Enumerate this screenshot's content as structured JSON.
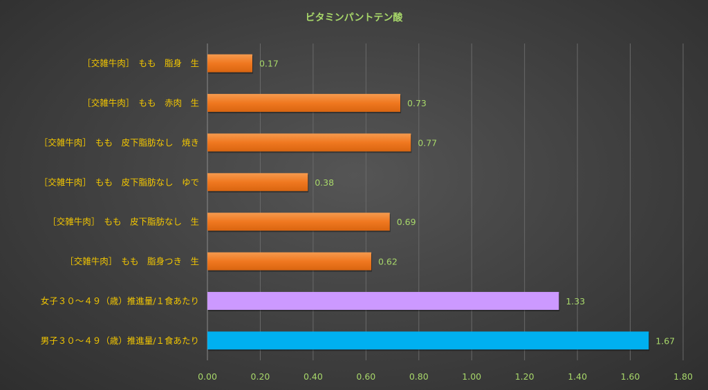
{
  "colors": {
    "text": "#a8d86a",
    "category_text": "#f5c800",
    "grid": "#6a6a6a",
    "orange": "#f07820",
    "purple": "#cc99ff",
    "blue": "#00b0f0"
  },
  "chart_data": {
    "type": "bar",
    "orientation": "horizontal",
    "title": "ビタミンパントテン酸",
    "categories": [
      "［交雑牛肉］　もも　脂身　生",
      "［交雑牛肉］　もも　赤肉　生",
      "［交雑牛肉］　もも　皮下脂肪なし　焼き",
      "［交雑牛肉］　もも　皮下脂肪なし　ゆで",
      "［交雑牛肉］　もも　皮下脂肪なし　生",
      "［交雑牛肉］　もも　脂身つき　生",
      "女子３０～４９（歳）推進量/１食あたり",
      "男子３０～４９（歳）推進量/１食あたり"
    ],
    "values": [
      0.17,
      0.73,
      0.77,
      0.38,
      0.69,
      0.62,
      1.33,
      1.67
    ],
    "value_labels": [
      "0.17",
      "0.73",
      "0.77",
      "0.38",
      "0.69",
      "0.62",
      "1.33",
      "1.67"
    ],
    "bar_colors": [
      "orange",
      "orange",
      "orange",
      "orange",
      "orange",
      "orange",
      "purple",
      "blue"
    ],
    "xlim": [
      0,
      1.8
    ],
    "x_ticks": [
      "0.00",
      "0.20",
      "0.40",
      "0.60",
      "0.80",
      "1.00",
      "1.20",
      "1.40",
      "1.60",
      "1.80"
    ],
    "grid": true,
    "legend": false,
    "xlabel": "",
    "ylabel": ""
  }
}
